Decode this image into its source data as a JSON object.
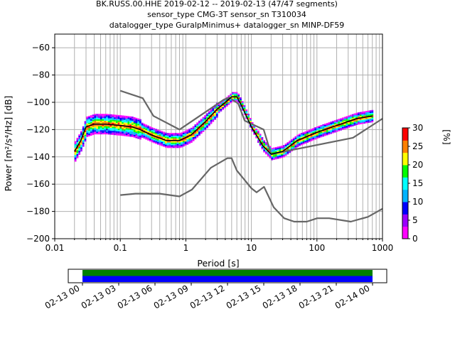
{
  "title_lines": [
    "BK.RUSS.00.HHE   2019-02-12 -- 2019-02-13  (47/47 segments)",
    "sensor_type CMG-3T sensor_sn T310034",
    "datalogger_type GuralpMinimus+ datalogger_sn MINP-DF59"
  ],
  "chart_data": {
    "type": "heatmap",
    "xlabel": "Period [s]",
    "ylabel": "Power [m²/s⁴/Hz] [dB]",
    "xscale": "log",
    "xlim": [
      0.01,
      1000
    ],
    "ylim": [
      -200,
      -50
    ],
    "xticks": [
      0.01,
      0.1,
      1,
      10,
      100,
      1000
    ],
    "xtick_labels": [
      "0.01",
      "0.1",
      "1",
      "10",
      "100",
      "1000"
    ],
    "yticks": [
      -200,
      -180,
      -160,
      -140,
      -120,
      -100,
      -80,
      -60
    ],
    "ytick_labels": [
      "−200",
      "−180",
      "−160",
      "−140",
      "−120",
      "−100",
      "−80",
      "−60"
    ],
    "grid": true,
    "mode_line": {
      "x": [
        0.02,
        0.025,
        0.03,
        0.04,
        0.06,
        0.1,
        0.15,
        0.2,
        0.3,
        0.5,
        0.8,
        1.2,
        2,
        3,
        4,
        5,
        6,
        7,
        10,
        15,
        20,
        30,
        50,
        100,
        200,
        400,
        700
      ],
      "y": [
        -136,
        -128,
        -118,
        -116,
        -116,
        -117,
        -118,
        -120,
        -124,
        -128,
        -128,
        -124,
        -114,
        -105,
        -100,
        -96,
        -96,
        -102,
        -118,
        -132,
        -138,
        -136,
        -128,
        -122,
        -117,
        -112,
        -110
      ]
    },
    "nlnm": {
      "x": [
        0.1,
        0.17,
        0.4,
        0.8,
        1.24,
        2.4,
        4.3,
        5,
        6,
        10,
        12,
        15.6,
        21.9,
        31.6,
        45,
        70,
        101,
        154,
        328,
        600,
        1000
      ],
      "y": [
        -168,
        -167,
        -167,
        -169,
        -164,
        -148,
        -141,
        -141,
        -150,
        -163,
        -166,
        -162,
        -177,
        -185,
        -187.5,
        -187.5,
        -185,
        -185,
        -187.5,
        -184,
        -178
      ]
    },
    "nhnm": {
      "x": [
        0.1,
        0.22,
        0.32,
        0.8,
        3.8,
        4.6,
        6.3,
        7.9,
        15.4,
        20,
        354.8,
        1000
      ],
      "y": [
        -91.5,
        -97,
        -110,
        -120,
        -98,
        -96.5,
        -101,
        -113.5,
        -120,
        -138,
        -126,
        -112
      ]
    },
    "colorbar": {
      "label": "[%]",
      "ticks": [
        0,
        5,
        10,
        15,
        20,
        25,
        30
      ],
      "tick_labels": [
        "0",
        "5",
        "10",
        "15",
        "20",
        "25",
        "30"
      ],
      "colors": [
        "#ffffff",
        "#ff00ff",
        "#9b00ff",
        "#0000ff",
        "#00b4ff",
        "#00ffff",
        "#00ff00",
        "#ffff00",
        "#ff8000",
        "#ff0000"
      ]
    },
    "time_axis": {
      "tick_labels": [
        "02-13 00",
        "02-13 03",
        "02-13 06",
        "02-13 09",
        "02-13 12",
        "02-13 15",
        "02-13 18",
        "02-13 21",
        "02-14 00"
      ],
      "coverage_colors": [
        "#008000",
        "#0000ff"
      ]
    }
  }
}
